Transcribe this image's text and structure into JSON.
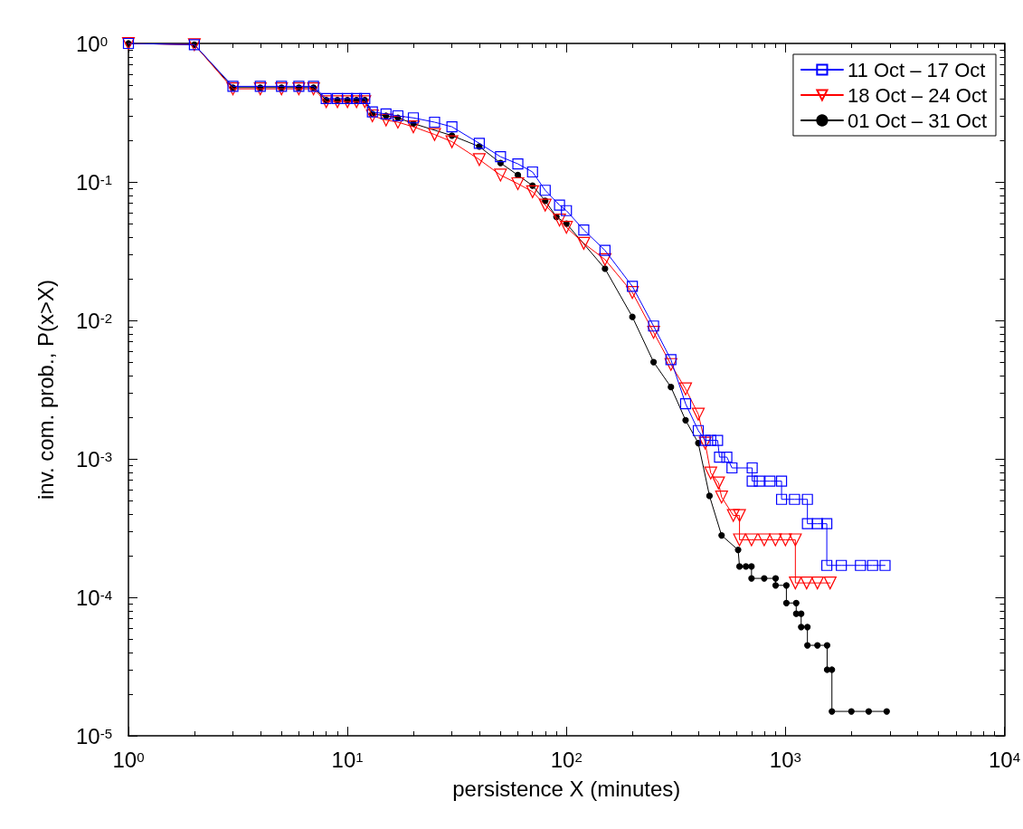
{
  "chart_data": {
    "type": "line",
    "xlabel": "persistence X (minutes)",
    "ylabel": "inv. com. prob., P(x>X)",
    "log": "xy",
    "grid": false,
    "legend": "top right",
    "line_style": "solid",
    "xlim": [
      1,
      10000
    ],
    "ylim": [
      1e-05,
      1
    ],
    "xticks": [
      {
        "value": 1,
        "label": "10$^{0}$"
      },
      {
        "value": 10,
        "label": "10$^{1}$"
      },
      {
        "value": 100,
        "label": "10$^{2}$"
      },
      {
        "value": 1000,
        "label": "10$^{3}$"
      },
      {
        "value": 10000,
        "label": "10$^{4}$"
      }
    ],
    "yticks": [
      {
        "value": 1e-05,
        "label": "10$^{-5}$"
      },
      {
        "value": 0.0001,
        "label": "10$^{-4}$"
      },
      {
        "value": 0.001,
        "label": "10$^{-3}$"
      },
      {
        "value": 0.01,
        "label": "10$^{-2}$"
      },
      {
        "value": 0.1,
        "label": "10$^{-1}$"
      },
      {
        "value": 1,
        "label": "10$^{0}$"
      }
    ],
    "series": [
      {
        "name": "11 Oct – 17 Oct",
        "color": "#0000ff",
        "marker": "square",
        "x": [
          1,
          2,
          3,
          4,
          5,
          6,
          7,
          8,
          9,
          10,
          11,
          12,
          13,
          15,
          17,
          20,
          25,
          30,
          40,
          50,
          60,
          70,
          80,
          93,
          100,
          120,
          150,
          200,
          250,
          300,
          350,
          400,
          430,
          456,
          490,
          500,
          540,
          570,
          705,
          705,
          760,
          850,
          960,
          960,
          1100,
          1260,
          1260,
          1400,
          1545,
          1545,
          1800,
          2200,
          2500,
          2850
        ],
        "values": [
          1,
          0.98,
          0.49,
          0.49,
          0.49,
          0.49,
          0.49,
          0.4,
          0.4,
          0.4,
          0.4,
          0.4,
          0.32,
          0.31,
          0.3,
          0.29,
          0.27,
          0.25,
          0.19,
          0.152,
          0.135,
          0.118,
          0.087,
          0.068,
          0.062,
          0.045,
          0.032,
          0.0176,
          0.0091,
          0.0052,
          0.0025,
          0.0016,
          0.00136,
          0.00136,
          0.00136,
          0.00103,
          0.00103,
          0.00086,
          0.00086,
          0.00069,
          0.00069,
          0.00069,
          0.00069,
          0.00051,
          0.00051,
          0.00051,
          0.00034,
          0.00034,
          0.00034,
          0.00017,
          0.00017,
          0.00017,
          0.00017,
          0.00017
        ]
      },
      {
        "name": "18 Oct – 24 Oct",
        "color": "#ff0000",
        "marker": "triangle",
        "x": [
          1,
          2,
          3,
          4,
          5,
          6,
          7,
          8,
          9,
          10,
          11,
          12,
          13,
          15,
          17,
          20,
          25,
          30,
          40,
          50,
          60,
          70,
          80,
          93,
          100,
          120,
          150,
          200,
          250,
          300,
          350,
          400,
          430,
          456,
          495,
          511,
          578,
          617,
          617,
          700,
          800,
          900,
          1000,
          1110,
          1110,
          1250,
          1400,
          1600
        ],
        "values": [
          1,
          0.98,
          0.47,
          0.47,
          0.47,
          0.47,
          0.47,
          0.38,
          0.38,
          0.38,
          0.38,
          0.38,
          0.3,
          0.28,
          0.27,
          0.25,
          0.22,
          0.195,
          0.145,
          0.112,
          0.097,
          0.085,
          0.068,
          0.053,
          0.047,
          0.036,
          0.0275,
          0.0159,
          0.0082,
          0.0048,
          0.0032,
          0.0021,
          0.0013,
          0.00079,
          0.00067,
          0.00053,
          0.00039,
          0.00039,
          0.00026,
          0.00026,
          0.00026,
          0.00026,
          0.00026,
          0.00026,
          0.000127,
          0.000127,
          0.000127,
          0.000127
        ]
      },
      {
        "name": "01 Oct – 31 Oct",
        "color": "#000000",
        "marker": "circle",
        "x": [
          1,
          2,
          3,
          4,
          5,
          6,
          7,
          8,
          9,
          10,
          11,
          12,
          13,
          15,
          17,
          20,
          30,
          40,
          50,
          60,
          70,
          80,
          90,
          100,
          150,
          200,
          250,
          300,
          350,
          400,
          450,
          511,
          608,
          617,
          660,
          700,
          700,
          800,
          902,
          902,
          1010,
          1010,
          1120,
          1120,
          1180,
          1180,
          1260,
          1260,
          1400,
          1550,
          1550,
          1630,
          1630,
          2000,
          2400,
          2900
        ],
        "values": [
          1,
          0.98,
          0.48,
          0.48,
          0.48,
          0.48,
          0.48,
          0.39,
          0.39,
          0.39,
          0.39,
          0.39,
          0.31,
          0.3,
          0.29,
          0.264,
          0.216,
          0.18,
          0.137,
          0.112,
          0.094,
          0.073,
          0.056,
          0.05,
          0.0236,
          0.0106,
          0.005,
          0.0033,
          0.0019,
          0.0013,
          0.00054,
          0.00028,
          0.00022,
          0.000167,
          0.000167,
          0.000167,
          0.000137,
          0.000137,
          0.000137,
          0.000122,
          0.000122,
          9.1e-05,
          9.1e-05,
          7.6e-05,
          7.6e-05,
          6.1e-05,
          6.1e-05,
          4.5e-05,
          4.5e-05,
          4.5e-05,
          3e-05,
          3e-05,
          1.5e-05,
          1.5e-05,
          1.5e-05,
          1.5e-05
        ]
      }
    ]
  }
}
